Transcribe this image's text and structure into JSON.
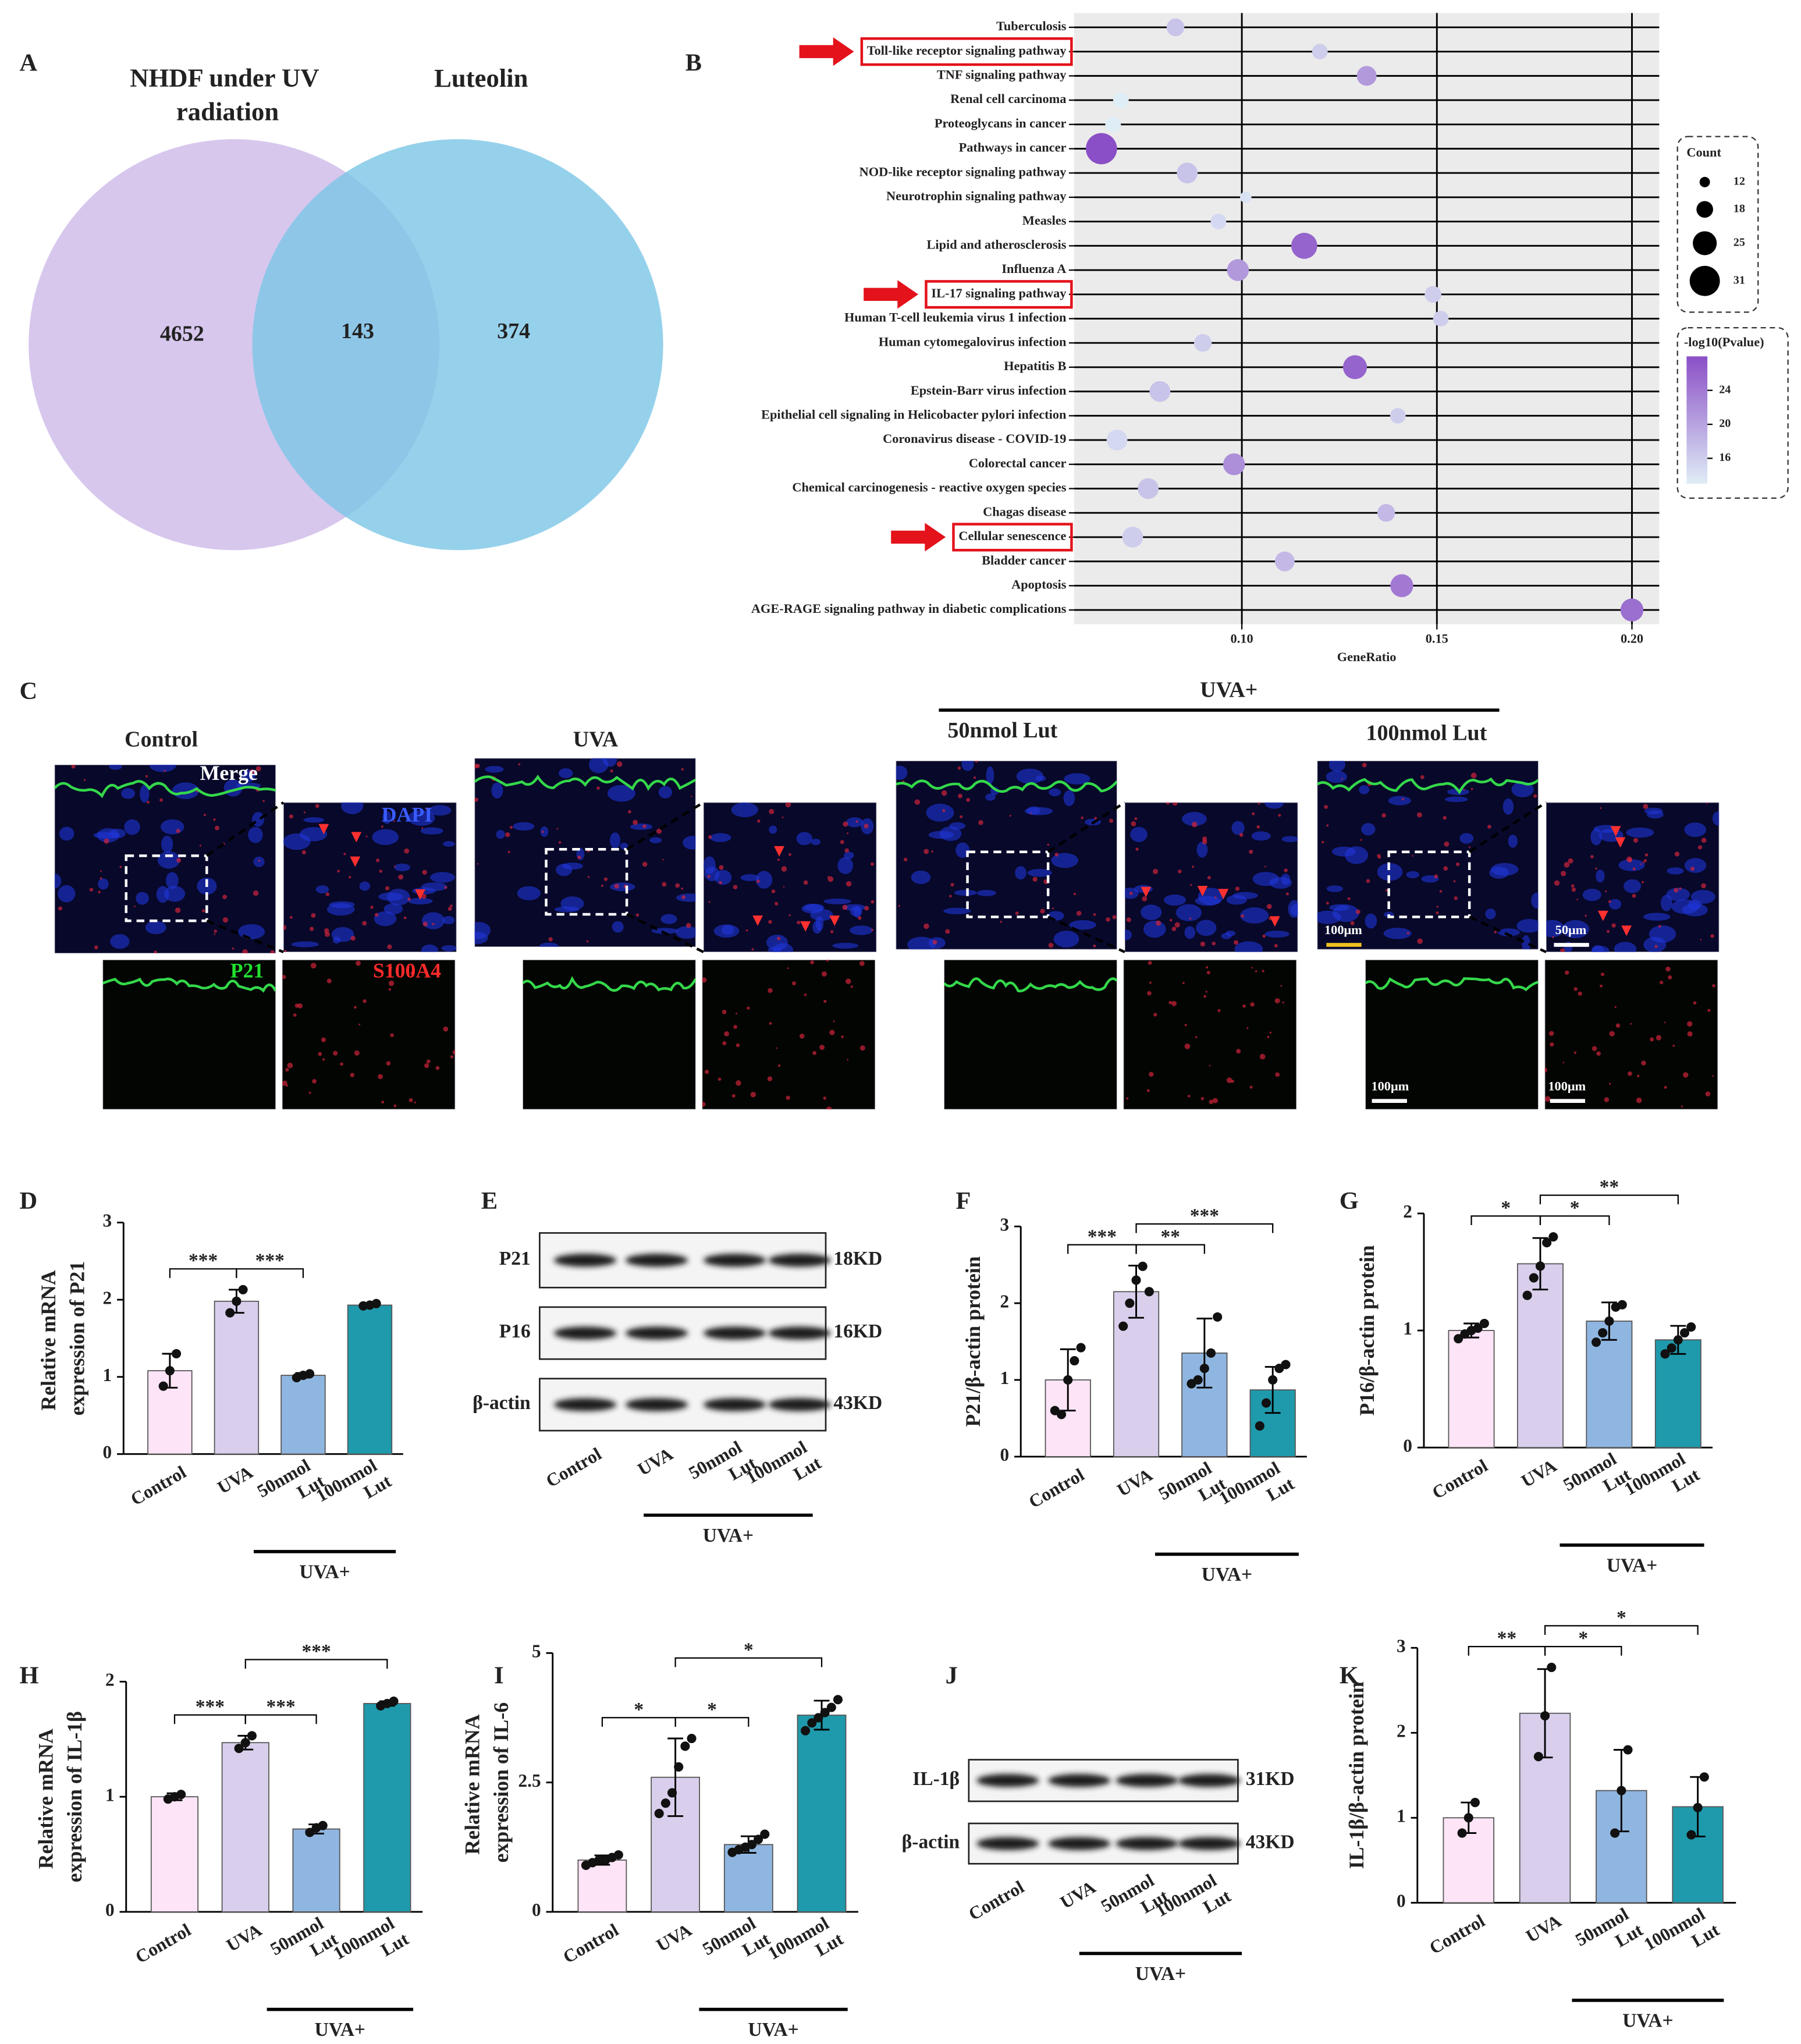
{
  "chart_data": [
    {
      "panel": "A",
      "type": "venn",
      "sets": [
        {
          "name": "NHDF under UV radiation",
          "color": "#cdb9e8"
        },
        {
          "name": "Luteolin",
          "color": "#7cc5e6"
        }
      ],
      "values": [
        4652,
        143,
        374
      ]
    },
    {
      "panel": "B",
      "type": "dotplot",
      "categories": [
        "Tuberculosis",
        "Toll-like receptor signaling pathway",
        "TNF signaling pathway",
        "Renal cell carcinoma",
        "Proteoglycans in cancer",
        "Pathways in cancer",
        "NOD-like receptor signaling pathway",
        "Neurotrophin signaling pathway",
        "Measles",
        "Lipid and atherosclerosis",
        "Influenza A",
        "IL-17 signaling pathway",
        "Human T-cell leukemia virus 1 infection",
        "Human cytomegalovirus infection",
        "Hepatitis B",
        "Epstein-Barr virus infection",
        "Epithelial cell signaling in Helicobacter pylori infection",
        "Coronavirus disease - COVID-19",
        "Colorectal cancer",
        "Chemical carcinogenesis - reactive oxygen species",
        "Chagas disease",
        "Cellular senescence",
        "Bladder cancer",
        "Apoptosis",
        "AGE-RAGE signaling pathway in diabetic complications"
      ],
      "x": [
        0.083,
        0.12,
        0.132,
        0.069,
        0.067,
        0.064,
        0.086,
        0.101,
        0.094,
        0.116,
        0.099,
        0.149,
        0.151,
        0.09,
        0.129,
        0.079,
        0.14,
        0.068,
        0.098,
        0.076,
        0.137,
        0.072,
        0.111,
        0.141,
        0.2
      ],
      "size_values": [
        19,
        17,
        21,
        17,
        17,
        32,
        22,
        13,
        17,
        27,
        23,
        18,
        17,
        19,
        25,
        22,
        17,
        22,
        23,
        22,
        19,
        22,
        21,
        24,
        24
      ],
      "color_values": [
        17,
        16,
        21,
        13,
        13,
        28,
        17,
        14,
        15,
        26,
        21,
        16,
        16,
        16,
        26,
        17,
        16,
        15,
        22,
        17,
        18,
        16,
        18,
        24,
        25
      ],
      "xlabel": "GeneRatio",
      "xlim": [
        0.057,
        0.207
      ],
      "xticks": [
        {
          "value": 0.1,
          "label": "0.10"
        },
        {
          "value": 0.15,
          "label": "0.15"
        },
        {
          "value": 0.2,
          "label": "0.20"
        }
      ],
      "grid": true,
      "highlight_rows": [
        1,
        11,
        21
      ],
      "size_legend": {
        "title": "Count",
        "values": [
          12,
          18,
          25,
          31
        ]
      },
      "color_legend": {
        "title": "-log10(Pvalue)",
        "ticks": [
          16,
          20,
          24
        ],
        "range": [
          13,
          28
        ],
        "colors": [
          "#dfedf6",
          "#8a4fc6"
        ]
      }
    },
    {
      "panel": "C",
      "type": "microscopy",
      "groups": [
        "Control",
        "UVA",
        "50nmol Lut",
        "100nmol Lut"
      ],
      "group_label": "UVA+",
      "channels": [
        "Merge",
        "DAPI",
        "P21",
        "S100A4"
      ],
      "scale_bars": [
        "100μm",
        "50μm",
        "100μm",
        "100μm"
      ]
    },
    {
      "panel": "D",
      "type": "bar",
      "ylabel": "Relative mRNA expression of P21",
      "categories": [
        "Control",
        "UVA",
        "50nmol Lut",
        "100nmol Lut"
      ],
      "group_label": "UVA+",
      "colors": [
        "#fde4f6",
        "#d9cfec",
        "#8fb6e0",
        "#1f9aac"
      ],
      "values": [
        1.08,
        1.98,
        1.02,
        1.93
      ],
      "errors": [
        0.22,
        0.15,
        0.03,
        0.02
      ],
      "points": [
        [
          0.88,
          1.08,
          1.3
        ],
        [
          1.83,
          1.98,
          2.13
        ],
        [
          0.99,
          1.02,
          1.04
        ],
        [
          1.92,
          1.93,
          1.95
        ]
      ],
      "ylim": [
        0,
        3
      ],
      "yticks": [
        0,
        1,
        2,
        3
      ],
      "comparisons": [
        {
          "pair": [
            0,
            1
          ],
          "label": "***"
        },
        {
          "pair": [
            1,
            2
          ],
          "label": "***"
        }
      ]
    },
    {
      "panel": "E",
      "type": "western-blot",
      "rows": [
        {
          "name": "P21",
          "size": "18KD"
        },
        {
          "name": "P16",
          "size": "16KD"
        },
        {
          "name": "β-actin",
          "size": "43KD"
        }
      ],
      "lanes": [
        "Control",
        "UVA",
        "50nmol Lut",
        "100nmol Lut"
      ],
      "group_label": "UVA+"
    },
    {
      "panel": "F",
      "type": "bar",
      "ylabel": "P21/β-actin protein",
      "categories": [
        "Control",
        "UVA",
        "50nmol Lut",
        "100nmol Lut"
      ],
      "group_label": "UVA+",
      "colors": [
        "#fde4f6",
        "#d9cfec",
        "#8fb6e0",
        "#1f9aac"
      ],
      "values": [
        1.0,
        2.15,
        1.35,
        0.87
      ],
      "errors": [
        0.4,
        0.34,
        0.45,
        0.3
      ],
      "points": [
        [
          0.6,
          0.55,
          1.0,
          1.25,
          1.42
        ],
        [
          1.7,
          2.0,
          2.3,
          2.48,
          2.15
        ],
        [
          0.95,
          1.0,
          1.15,
          1.35,
          1.82
        ],
        [
          0.4,
          0.7,
          1.0,
          1.15,
          1.2
        ]
      ],
      "ylim": [
        0,
        3
      ],
      "yticks": [
        0,
        1,
        2,
        3
      ],
      "comparisons": [
        {
          "pair": [
            0,
            1
          ],
          "label": "***"
        },
        {
          "pair": [
            1,
            2
          ],
          "label": "**"
        },
        {
          "pair": [
            1,
            3
          ],
          "label": "***"
        }
      ]
    },
    {
      "panel": "G",
      "type": "bar",
      "ylabel": "P16/β-actin protein",
      "categories": [
        "Control",
        "UVA",
        "50nmol Lut",
        "100nmol Lut"
      ],
      "group_label": "UVA+",
      "colors": [
        "#fde4f6",
        "#d9cfec",
        "#8fb6e0",
        "#1f9aac"
      ],
      "values": [
        1.0,
        1.57,
        1.08,
        0.92
      ],
      "errors": [
        0.06,
        0.22,
        0.16,
        0.12
      ],
      "points": [
        [
          0.93,
          0.97,
          1.0,
          1.02,
          1.06
        ],
        [
          1.3,
          1.45,
          1.55,
          1.75,
          1.8
        ],
        [
          0.9,
          0.98,
          1.08,
          1.2,
          1.22
        ],
        [
          0.8,
          0.85,
          0.92,
          0.98,
          1.03
        ]
      ],
      "ylim": [
        0,
        2
      ],
      "yticks": [
        0,
        1,
        2
      ],
      "comparisons": [
        {
          "pair": [
            0,
            1
          ],
          "label": "*"
        },
        {
          "pair": [
            1,
            2
          ],
          "label": "*"
        },
        {
          "pair": [
            1,
            3
          ],
          "label": "**"
        }
      ]
    },
    {
      "panel": "H",
      "type": "bar",
      "ylabel": "Relative mRNA expression of IL-1β",
      "categories": [
        "Control",
        "UVA",
        "50nmol Lut",
        "100nmol Lut"
      ],
      "group_label": "UVA+",
      "colors": [
        "#fde4f6",
        "#d9cfec",
        "#8fb6e0",
        "#1f9aac"
      ],
      "values": [
        1.0,
        1.47,
        0.72,
        1.81
      ],
      "errors": [
        0.03,
        0.06,
        0.04,
        0.02
      ],
      "points": [
        [
          0.98,
          1.0,
          1.02
        ],
        [
          1.42,
          1.47,
          1.53
        ],
        [
          0.69,
          0.73,
          0.75
        ],
        [
          1.79,
          1.81,
          1.83
        ]
      ],
      "ylim": [
        0,
        2
      ],
      "yticks": [
        0,
        1,
        2
      ],
      "comparisons": [
        {
          "pair": [
            0,
            1
          ],
          "label": "***"
        },
        {
          "pair": [
            1,
            2
          ],
          "label": "***"
        },
        {
          "pair": [
            1,
            3
          ],
          "label": "***"
        }
      ]
    },
    {
      "panel": "I",
      "type": "bar",
      "ylabel": "Relative mRNA expression of IL-6",
      "categories": [
        "Control",
        "UVA",
        "50nmol Lut",
        "100nmol Lut"
      ],
      "group_label": "UVA+",
      "colors": [
        "#fde4f6",
        "#d9cfec",
        "#8fb6e0",
        "#1f9aac"
      ],
      "values": [
        1.0,
        2.6,
        1.3,
        3.8
      ],
      "errors": [
        0.09,
        0.75,
        0.16,
        0.28
      ],
      "points": [
        [
          0.9,
          0.95,
          1.0,
          1.0,
          1.05,
          1.1
        ],
        [
          1.9,
          2.1,
          2.3,
          2.8,
          3.2,
          3.35
        ],
        [
          1.15,
          1.2,
          1.25,
          1.3,
          1.4,
          1.5
        ],
        [
          3.5,
          3.65,
          3.75,
          3.85,
          3.95,
          4.1
        ]
      ],
      "ylim": [
        0,
        5
      ],
      "yticks": [
        0,
        2.5,
        5
      ],
      "comparisons": [
        {
          "pair": [
            0,
            1
          ],
          "label": "*"
        },
        {
          "pair": [
            1,
            2
          ],
          "label": "*"
        },
        {
          "pair": [
            1,
            3
          ],
          "label": "*"
        }
      ]
    },
    {
      "panel": "J",
      "type": "western-blot",
      "rows": [
        {
          "name": "IL-1β",
          "size": "31KD"
        },
        {
          "name": "β-actin",
          "size": "43KD"
        }
      ],
      "lanes": [
        "Control",
        "UVA",
        "50nmol Lut",
        "100nmol Lut"
      ],
      "group_label": "UVA+"
    },
    {
      "panel": "K",
      "type": "bar",
      "ylabel": "IL-1β/β-actin protein",
      "categories": [
        "Control",
        "UVA",
        "50nmol Lut",
        "100nmol Lut"
      ],
      "group_label": "UVA+",
      "colors": [
        "#fde4f6",
        "#d9cfec",
        "#8fb6e0",
        "#1f9aac"
      ],
      "values": [
        1.0,
        2.23,
        1.32,
        1.13
      ],
      "errors": [
        0.18,
        0.52,
        0.48,
        0.35
      ],
      "points": [
        [
          0.82,
          1.0,
          1.18
        ],
        [
          1.72,
          2.2,
          2.77
        ],
        [
          0.82,
          1.32,
          1.8
        ],
        [
          0.8,
          1.12,
          1.48
        ]
      ],
      "ylim": [
        0,
        3
      ],
      "yticks": [
        0,
        1,
        2,
        3
      ],
      "comparisons": [
        {
          "pair": [
            0,
            1
          ],
          "label": "**"
        },
        {
          "pair": [
            1,
            2
          ],
          "label": "*"
        },
        {
          "pair": [
            1,
            3
          ],
          "label": "*"
        }
      ]
    }
  ]
}
